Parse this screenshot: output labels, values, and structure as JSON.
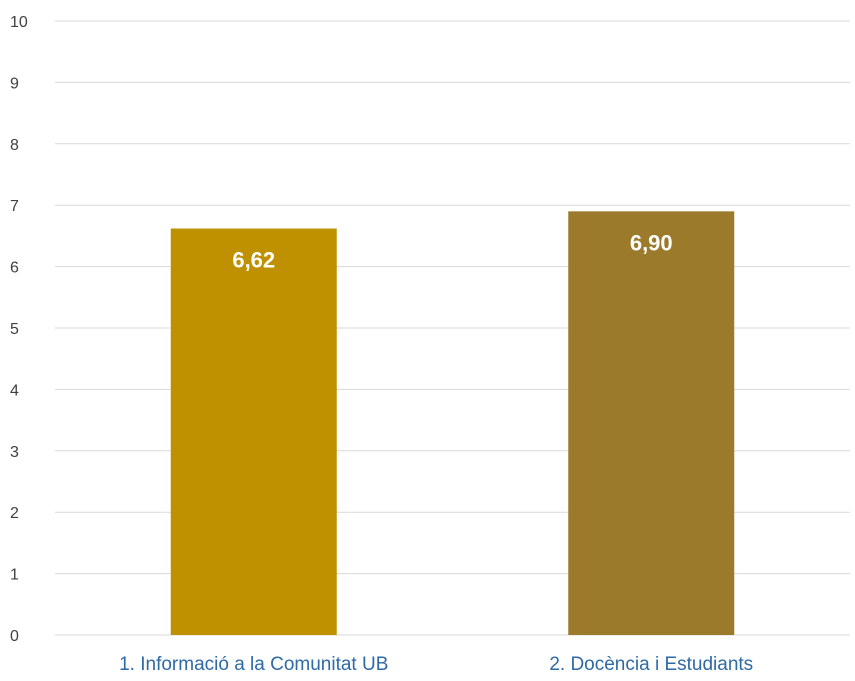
{
  "chart_data": {
    "type": "bar",
    "categories": [
      "1. Informació a la Comunitat UB",
      "2. Docència i Estudiants"
    ],
    "values": [
      6.62,
      6.9
    ],
    "data_labels": [
      "6,62",
      "6,90"
    ],
    "bar_colors": [
      "#bf9000",
      "#9c7a2b"
    ],
    "ylim": [
      0,
      10
    ],
    "yticks": [
      "0",
      "1",
      "2",
      "3",
      "4",
      "5",
      "6",
      "7",
      "8",
      "9",
      "10"
    ],
    "grid": true,
    "legend": "none"
  }
}
